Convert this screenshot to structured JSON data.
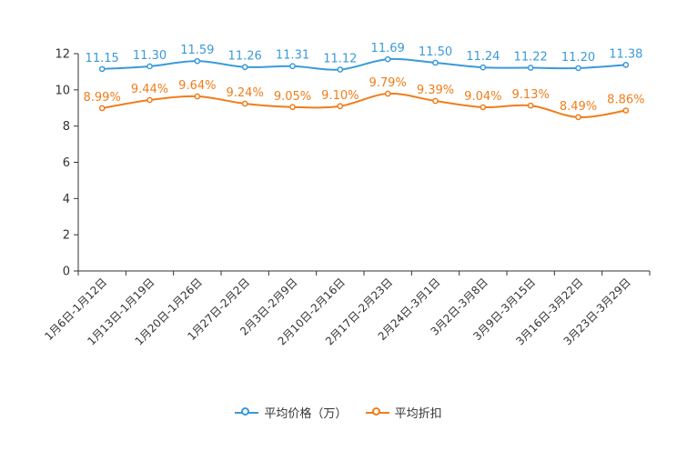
{
  "chart_data": {
    "type": "line",
    "title": "",
    "xlabel": "",
    "ylabel": "",
    "ylim": [
      0,
      12
    ],
    "yticks": [
      0,
      2,
      4,
      6,
      8,
      10,
      12
    ],
    "grid": false,
    "legend_position": "bottom-center",
    "categories": [
      "1月6日-1月12日",
      "1月13日-1月19日",
      "1月20日-1月26日",
      "1月27日-2月2日",
      "2月3日-2月9日",
      "2月10日-2月16日",
      "2月17日-2月23日",
      "2月24日-3月1日",
      "3月2日-3月8日",
      "3月9日-3月15日",
      "3月16日-3月22日",
      "3月23日-3月29日"
    ],
    "series": [
      {
        "name": "平均价格（万）",
        "color": "#3a9ad9",
        "values": [
          11.15,
          11.3,
          11.59,
          11.26,
          11.31,
          11.12,
          11.69,
          11.5,
          11.24,
          11.22,
          11.2,
          11.38
        ],
        "labels": [
          "11.15",
          "11.30",
          "11.59",
          "11.26",
          "11.31",
          "11.12",
          "11.69",
          "11.50",
          "11.24",
          "11.22",
          "11.20",
          "11.38"
        ]
      },
      {
        "name": "平均折扣",
        "color": "#f07d1a",
        "values": [
          8.99,
          9.44,
          9.64,
          9.24,
          9.05,
          9.1,
          9.79,
          9.39,
          9.04,
          9.13,
          8.49,
          8.86
        ],
        "labels": [
          "8.99%",
          "9.44%",
          "9.64%",
          "9.24%",
          "9.05%",
          "9.10%",
          "9.79%",
          "9.39%",
          "9.04%",
          "9.13%",
          "8.49%",
          "8.86%"
        ]
      }
    ]
  }
}
